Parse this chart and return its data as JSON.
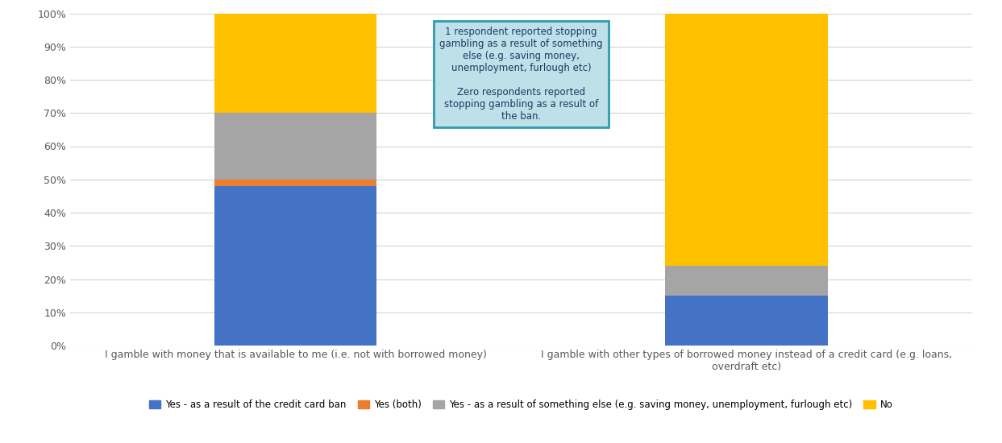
{
  "categories": [
    "I gamble with money that is available to me (i.e. not with borrowed money)",
    "I gamble with other types of borrowed money instead of a credit card (e.g. loans,\noverdraft etc)"
  ],
  "series": {
    "Yes - as a result of the credit card ban": [
      48,
      15
    ],
    "Yes (both)": [
      2,
      0
    ],
    "Yes - as a result of something else (e.g. saving money, unemployment, furlough etc)": [
      20,
      9
    ],
    "No": [
      30,
      76
    ]
  },
  "colors": {
    "Yes - as a result of the credit card ban": "#4472C4",
    "Yes (both)": "#ED7D31",
    "Yes - as a result of something else (e.g. saving money, unemployment, furlough etc)": "#A5A5A5",
    "No": "#FFC000"
  },
  "ylim": [
    0,
    100
  ],
  "yticks": [
    0,
    10,
    20,
    30,
    40,
    50,
    60,
    70,
    80,
    90,
    100
  ],
  "yticklabels": [
    "0%",
    "10%",
    "20%",
    "30%",
    "40%",
    "50%",
    "60%",
    "70%",
    "80%",
    "90%",
    "100%"
  ],
  "annotation_text": "1 respondent reported stopping\ngambling as a result of something\nelse (e.g. saving money,\nunemployment, furlough etc)\n\nZero respondents reported\nstopping gambling as a result of\nthe ban.",
  "annotation_box_color": "#BEE0E8",
  "annotation_border_color": "#2E9CB0",
  "background_color": "#FFFFFF",
  "grid_color": "#D3D3D3",
  "bar_width": 0.18
}
